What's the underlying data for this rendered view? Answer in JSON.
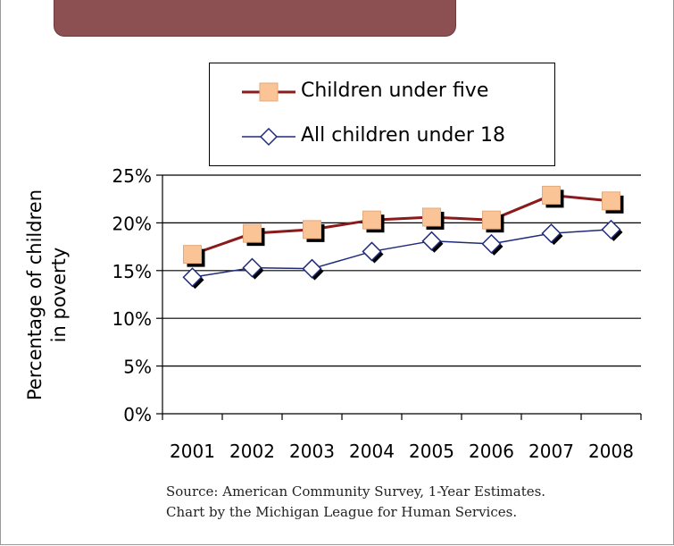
{
  "chart_data": {
    "type": "line",
    "x": [
      "2001",
      "2002",
      "2003",
      "2004",
      "2005",
      "2006",
      "2007",
      "2008"
    ],
    "series": [
      {
        "name": "Children under five",
        "values": [
          16.7,
          18.9,
          19.3,
          20.3,
          20.6,
          20.3,
          22.9,
          22.3
        ],
        "color": "#8b1a1a",
        "marker": "square",
        "marker_color": "#fbc497"
      },
      {
        "name": "All children under 18",
        "values": [
          14.3,
          15.3,
          15.2,
          17.0,
          18.1,
          17.8,
          18.9,
          19.3
        ],
        "color": "#1f2a7a",
        "marker": "diamond",
        "marker_color": "#ffffff"
      }
    ],
    "yticks": [
      "0%",
      "5%",
      "10%",
      "15%",
      "20%",
      "25%"
    ],
    "ylim": [
      0,
      25
    ],
    "ylabel_line1": "Percentage of children",
    "ylabel_line2": "in poverty",
    "grid": true,
    "legend_position": "top"
  },
  "source": {
    "line1": "Source:  American Community Survey, 1-Year Estimates.",
    "line2": "Chart by the Michigan League for Human Services."
  }
}
